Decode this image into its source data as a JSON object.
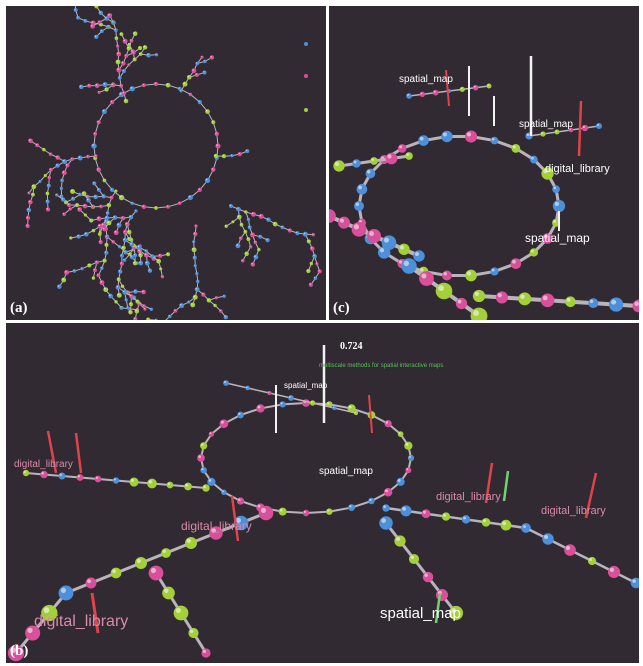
{
  "panels": {
    "a": {
      "letter": "(a)"
    },
    "b": {
      "letter": "(b)"
    },
    "c": {
      "letter": "(c)"
    }
  },
  "labels": {
    "spatial_map": "spatial_map",
    "digital_library": "digital_library",
    "similarity_value": "0.724",
    "highlighted_title": "multiscale methods for spatial interactive maps"
  },
  "colors": {
    "background": "#312a32",
    "node_blue": "#4d8fd8",
    "node_pink": "#d9509a",
    "node_green": "#a3cf3a",
    "edge": "#b9b4bc",
    "bar_red": "#e0434b",
    "bar_white": "#f2f2f2",
    "bar_green": "#6fd36f"
  }
}
